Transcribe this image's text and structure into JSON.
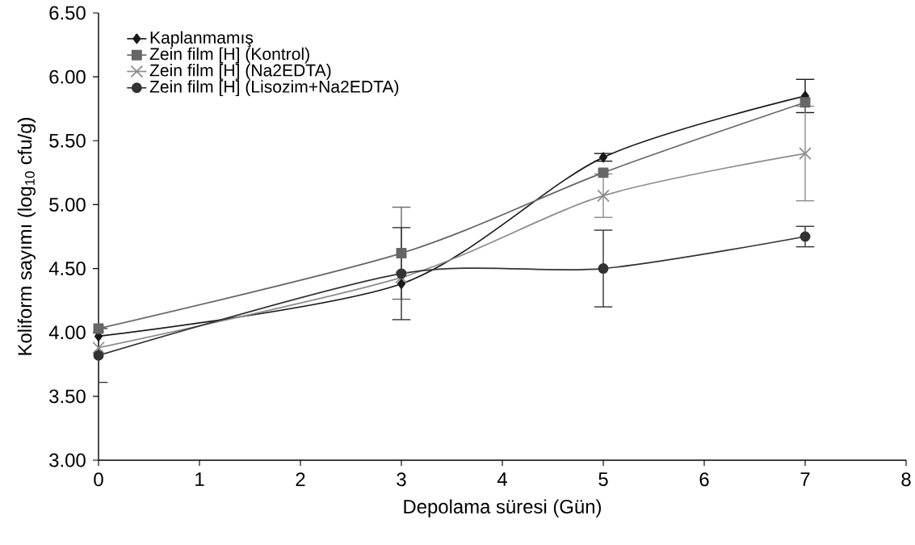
{
  "chart_data": {
    "type": "line",
    "xlabel": "Depolama süresi (Gün)",
    "ylabel": "Koliform sayımı (log$_{10}$ cfu/g)",
    "x": [
      0,
      3,
      5,
      7
    ],
    "xlim": [
      0,
      8
    ],
    "xticks": [
      0,
      1,
      2,
      3,
      4,
      5,
      6,
      7,
      8
    ],
    "ylim": [
      3,
      6.5
    ],
    "yticks": [
      {
        "value": 3,
        "label": "3.00"
      },
      {
        "value": 3.5,
        "label": "3.50"
      },
      {
        "value": 4,
        "label": "4.00"
      },
      {
        "value": 4.5,
        "label": "4.50"
      },
      {
        "value": 5,
        "label": "5.00"
      },
      {
        "value": 5.5,
        "label": "5.50"
      },
      {
        "value": 6,
        "label": "6.00"
      },
      {
        "value": 6.5,
        "label": "6.50"
      }
    ],
    "grid": false,
    "legend": "top left",
    "line_style": "solid",
    "series": [
      {
        "name": "Kaplanmamış",
        "color": "#1a1a1a",
        "marker": "diamond",
        "values": [
          3.97,
          4.38,
          5.37,
          5.85
        ],
        "errors": [
          null,
          null,
          0.03,
          0.13
        ]
      },
      {
        "name": "Zein film [H] (Kontrol)",
        "color": "#666666",
        "marker": "square",
        "values": [
          4.03,
          4.62,
          5.25,
          5.8
        ],
        "errors": [
          null,
          0.36,
          null,
          null
        ]
      },
      {
        "name": "Zein film [H] (Na2EDTA)",
        "color": "#8c8c8c",
        "marker": "cross",
        "values": [
          3.88,
          4.43,
          5.07,
          5.4
        ],
        "errors": [
          null,
          null,
          0.17,
          0.37
        ]
      },
      {
        "name": "Zein film [H] (Lisozim+Na2EDTA)",
        "color": "#333333",
        "marker": "circle",
        "values": [
          3.82,
          4.46,
          4.5,
          4.75
        ],
        "errors": [
          0.21,
          0.36,
          0.3,
          0.08
        ]
      }
    ]
  }
}
